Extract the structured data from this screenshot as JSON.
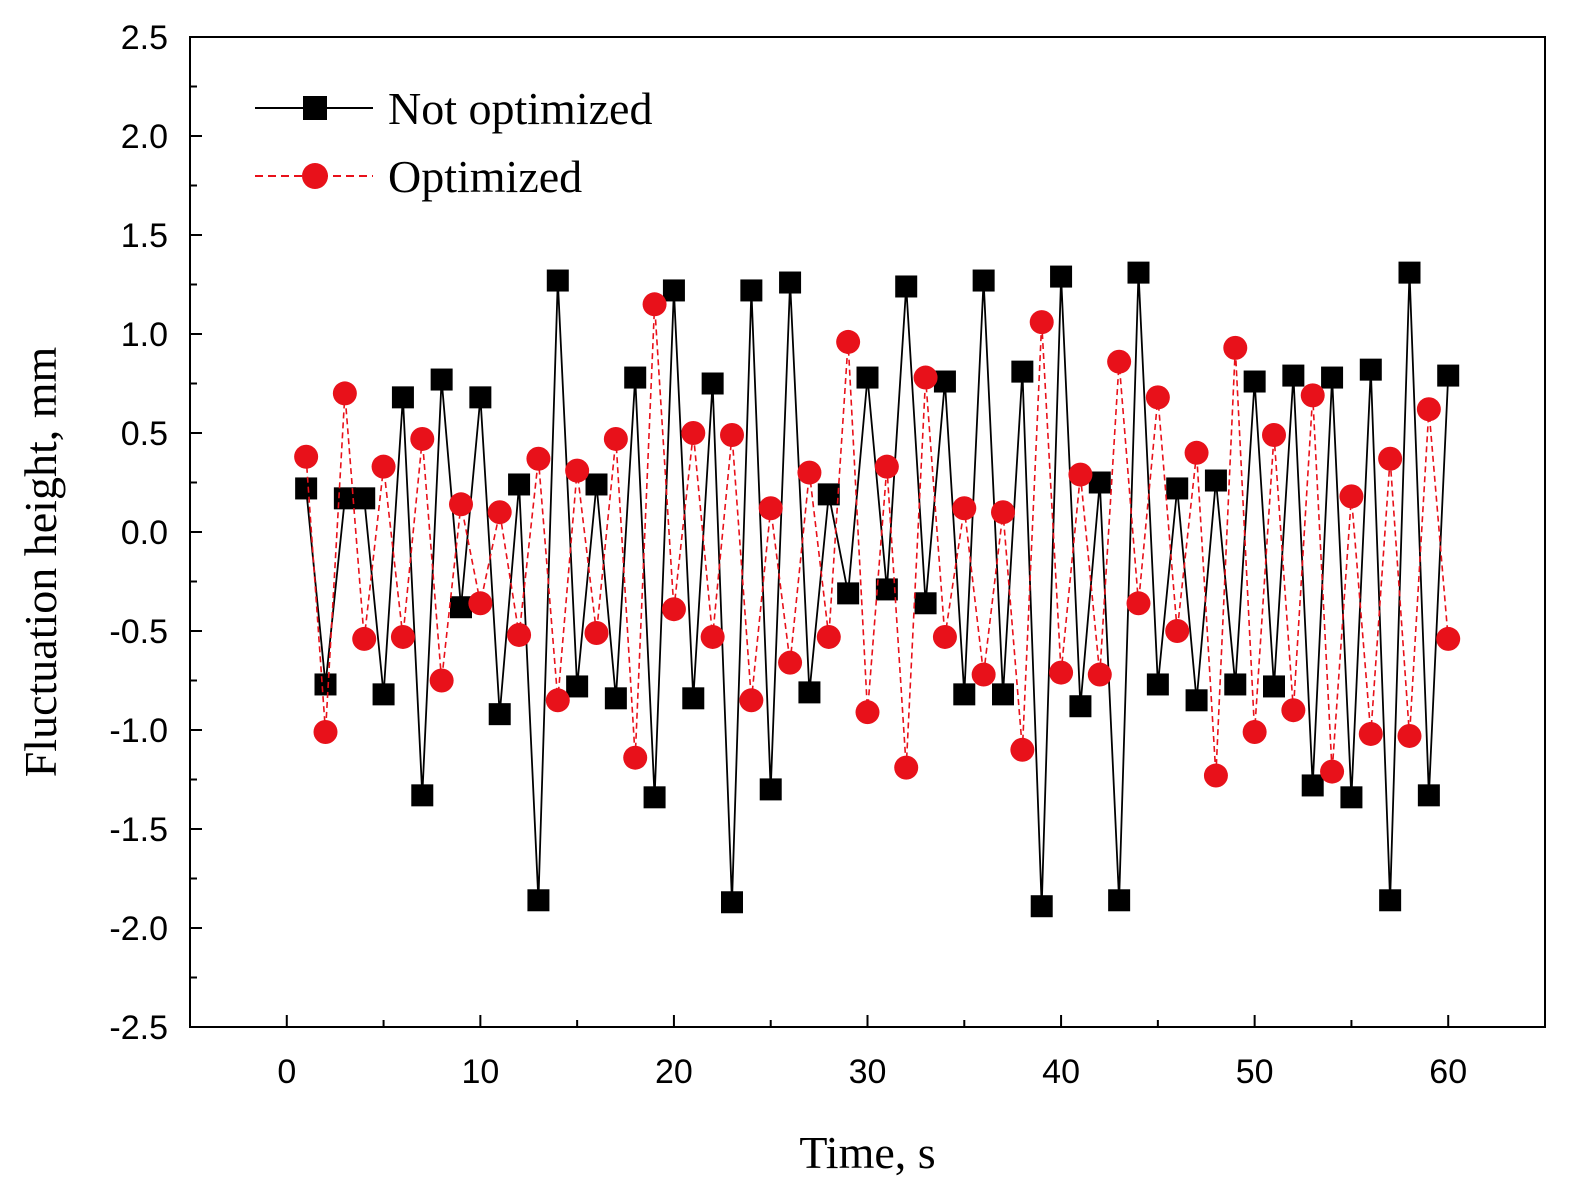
{
  "chart_data": {
    "type": "line",
    "title": "",
    "xlabel": "Time,  s",
    "ylabel": "Fluctuation height,  mm",
    "xlim": [
      -5,
      65
    ],
    "ylim": [
      -2.5,
      2.5
    ],
    "x_ticks": [
      0,
      10,
      20,
      30,
      40,
      50,
      60
    ],
    "x_tick_labels": [
      "0",
      "10",
      "20",
      "30",
      "40",
      "50",
      "60"
    ],
    "y_ticks": [
      -2.5,
      -2.0,
      -1.5,
      -1.0,
      -0.5,
      0.0,
      0.5,
      1.0,
      1.5,
      2.0,
      2.5
    ],
    "y_tick_labels": [
      "-2.5",
      "-2.0",
      "-1.5",
      "-1.0",
      "-0.5",
      "0.0",
      "0.5",
      "1.0",
      "1.5",
      "2.0",
      "2.5"
    ],
    "legend_position": "top-left",
    "grid": false,
    "x": [
      1,
      2,
      3,
      4,
      5,
      6,
      7,
      8,
      9,
      10,
      11,
      12,
      13,
      14,
      15,
      16,
      17,
      18,
      19,
      20,
      21,
      22,
      23,
      24,
      25,
      26,
      27,
      28,
      29,
      30,
      31,
      32,
      33,
      34,
      35,
      36,
      37,
      38,
      39,
      40,
      41,
      42,
      43,
      44,
      45,
      46,
      47,
      48,
      49,
      50,
      51,
      52,
      53,
      54,
      55,
      56,
      57,
      58,
      59,
      60
    ],
    "series": [
      {
        "name": "Not optimized",
        "color": "#000000",
        "marker": "square",
        "line_style": "solid",
        "values": [
          0.22,
          -0.77,
          0.17,
          0.17,
          -0.82,
          0.68,
          -1.33,
          0.77,
          -0.38,
          0.68,
          -0.92,
          0.24,
          -1.86,
          1.27,
          -0.78,
          0.24,
          -0.84,
          0.78,
          -1.34,
          1.22,
          -0.84,
          0.75,
          -1.87,
          1.22,
          -1.3,
          1.26,
          -0.81,
          0.19,
          -0.31,
          0.78,
          -0.29,
          1.24,
          -0.36,
          0.76,
          -0.82,
          1.27,
          -0.82,
          0.81,
          -1.89,
          1.29,
          -0.88,
          0.25,
          -1.86,
          1.31,
          -0.77,
          0.22,
          -0.85,
          0.26,
          -0.77,
          0.76,
          -0.78,
          0.79,
          -1.28,
          0.78,
          -1.34,
          0.82,
          -1.86,
          1.31,
          -1.33,
          0.79
        ]
      },
      {
        "name": "Optimized",
        "color": "#e8111a",
        "marker": "circle",
        "line_style": "dashed",
        "values": [
          0.38,
          -1.01,
          0.7,
          -0.54,
          0.33,
          -0.53,
          0.47,
          -0.75,
          0.14,
          -0.36,
          0.1,
          -0.52,
          0.37,
          -0.85,
          0.31,
          -0.51,
          0.47,
          -1.14,
          1.15,
          -0.39,
          0.5,
          -0.53,
          0.49,
          -0.85,
          0.12,
          -0.66,
          0.3,
          -0.53,
          0.96,
          -0.91,
          0.33,
          -1.19,
          0.78,
          -0.53,
          0.12,
          -0.72,
          0.1,
          -1.1,
          1.06,
          -0.71,
          0.29,
          -0.72,
          0.86,
          -0.36,
          0.68,
          -0.5,
          0.4,
          -1.23,
          0.93,
          -1.01,
          0.49,
          -0.9,
          0.69,
          -1.21,
          0.18,
          -1.02,
          0.37,
          -1.03,
          0.62,
          -0.54
        ]
      }
    ]
  }
}
